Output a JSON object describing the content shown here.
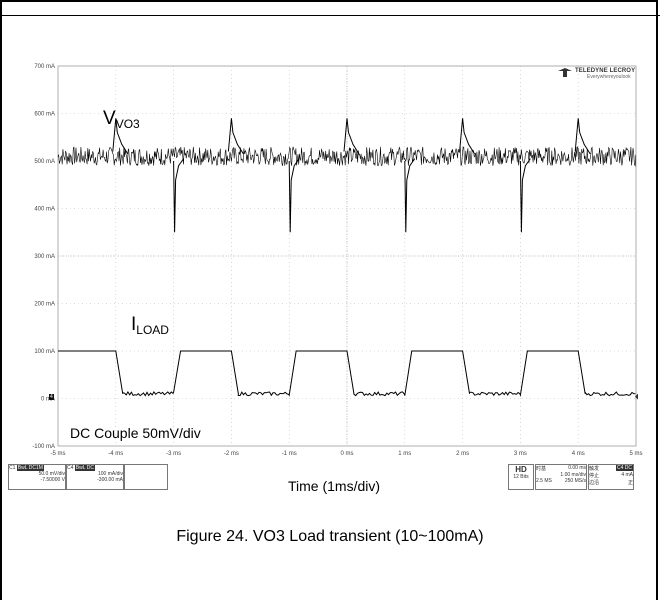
{
  "chart_data": {
    "type": "line",
    "title": "Figure 24. VO3 Load transient (10~100mA)",
    "xlabel": "Time (1ms/div)",
    "ylabel": "",
    "x_ticks": [
      "-5 ms",
      "-4 ms",
      "-3 ms",
      "-2 ms",
      "-1 ms",
      "0 ms",
      "1 ms",
      "2 ms",
      "3 ms",
      "4 ms",
      "5 ms"
    ],
    "y_ticks": [
      "700 mA",
      "600 mA",
      "500 mA",
      "400 mA",
      "300 mA",
      "200 mA",
      "100 mA",
      "0 mA",
      "-100 mA"
    ],
    "xlim": [
      -5,
      5
    ],
    "ylim": [
      -100,
      700
    ],
    "grid": true,
    "series": [
      {
        "name": "VO3",
        "baseline": 510,
        "noise_band": [
          490,
          530
        ],
        "overshoot_peak": 590,
        "undershoot_min": 350,
        "edge_times_ms": [
          -4,
          -2,
          0,
          2,
          4
        ]
      },
      {
        "name": "ILOAD",
        "low": 10,
        "high": 100,
        "high_intervals_ms": [
          [
            -5,
            -4
          ],
          [
            -3,
            -2
          ],
          [
            -1,
            0
          ],
          [
            1,
            2
          ],
          [
            3,
            4
          ]
        ]
      }
    ],
    "annotations": {
      "vo3_label": "V",
      "vo3_sub": "VO3",
      "iload_label": "I",
      "iload_sub": "LOAD",
      "couple": "DC Couple 50mV/div"
    }
  },
  "logo": {
    "brand": "TELEDYNE LECROY",
    "tag": "Everywhereyoulook"
  },
  "scope_info": {
    "c1_label": "C1",
    "c1_badge": "BwL DC1M",
    "c1_scale": "50.0 mV/div",
    "c1_offset": "-7.50000 V",
    "c4_label": "C4",
    "c4_badge": "BwL DC",
    "c4_scale": "100 mA/div",
    "c4_offset": "-300.00 mA",
    "hd": "HD",
    "bits": "12 Bits",
    "time_label": "时基",
    "time_pos": "0.00 ms",
    "time_div": "1.00 ms/div",
    "samples": "2.5 MS",
    "rate": "250 MS/s",
    "trig_label": "触发",
    "trig_badge": "C4 DC",
    "stop": "停止",
    "trig_level": "4 mA",
    "edge": "边沿",
    "slope": "正"
  },
  "ground_marker": "4"
}
